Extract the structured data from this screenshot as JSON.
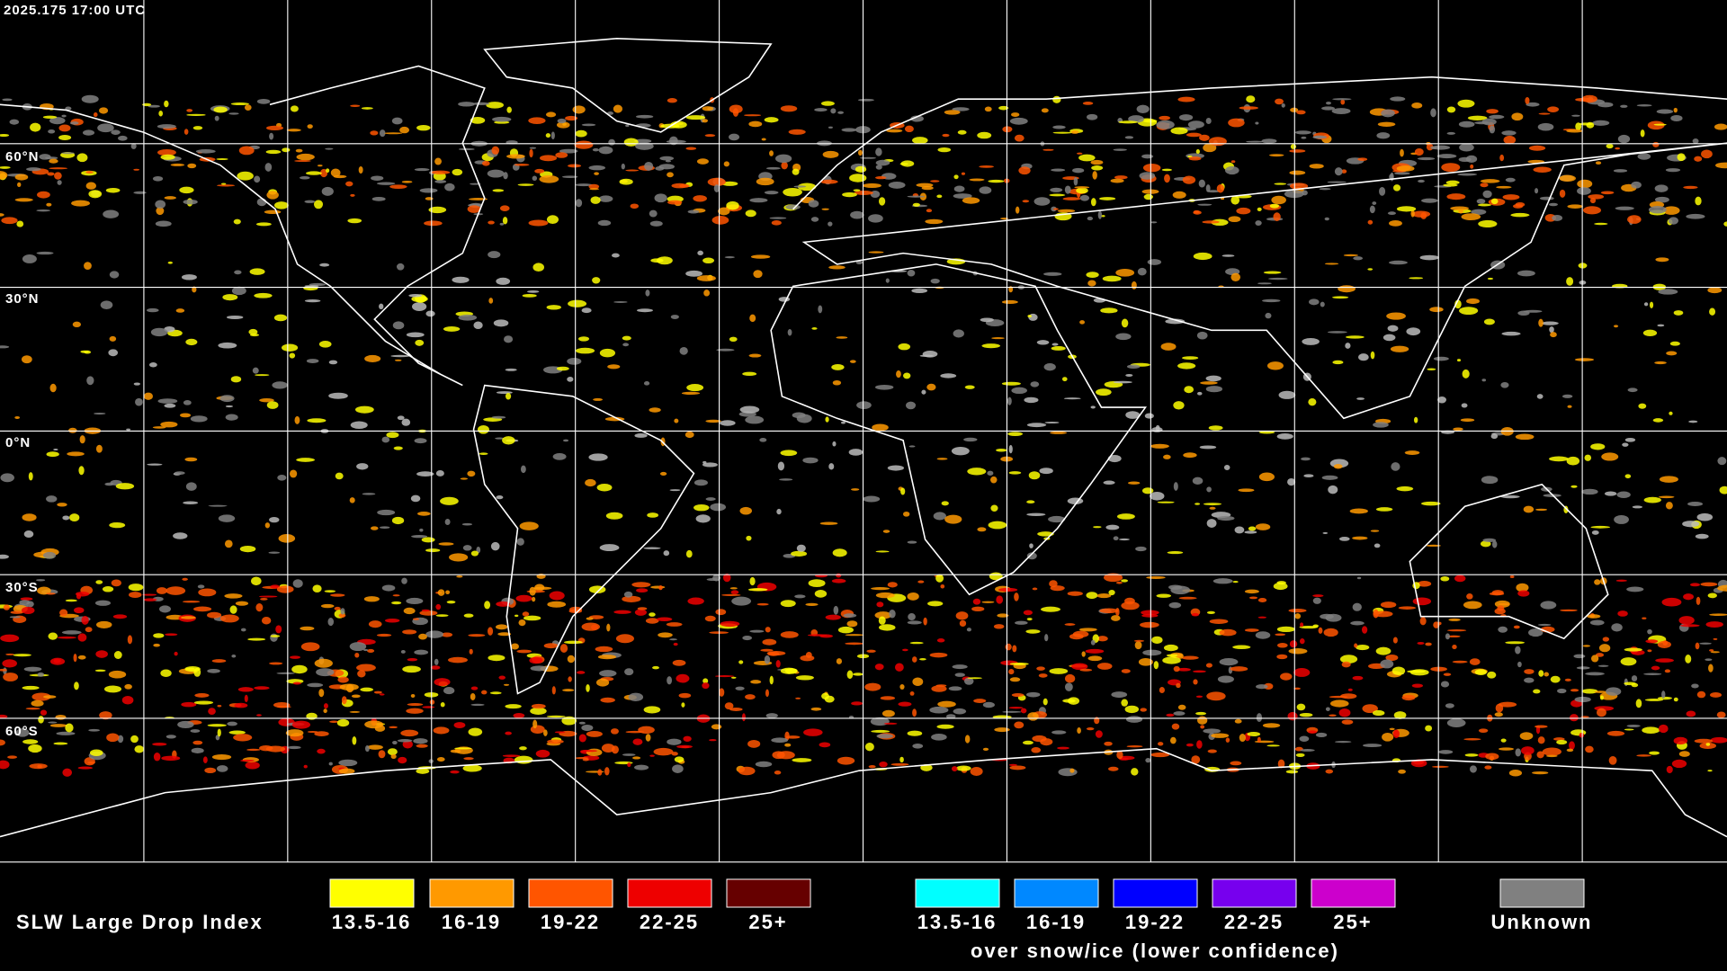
{
  "header": {
    "timestamp": "2025.175 17:00 UTC"
  },
  "map": {
    "latitude_labels": [
      "60°N",
      "30°N",
      "0°N",
      "30°S",
      "60°S"
    ]
  },
  "legend": {
    "title": "SLW Large Drop Index",
    "entries": [
      {
        "label": "13.5-16",
        "color": "#ffff00"
      },
      {
        "label": "16-19",
        "color": "#ff9900"
      },
      {
        "label": "19-22",
        "color": "#ff5500"
      },
      {
        "label": "22-25",
        "color": "#ee0000"
      },
      {
        "label": "25+",
        "color": "#660000"
      }
    ],
    "snow_ice_entries": [
      {
        "label": "13.5-16",
        "color": "#00ffff"
      },
      {
        "label": "16-19",
        "color": "#0088ff"
      },
      {
        "label": "19-22",
        "color": "#0000ff"
      },
      {
        "label": "22-25",
        "color": "#7700ee"
      },
      {
        "label": "25+",
        "color": "#cc00cc"
      }
    ],
    "snow_ice_note": "over snow/ice (lower confidence)",
    "unknown": {
      "label": "Unknown",
      "color": "#808080"
    }
  }
}
